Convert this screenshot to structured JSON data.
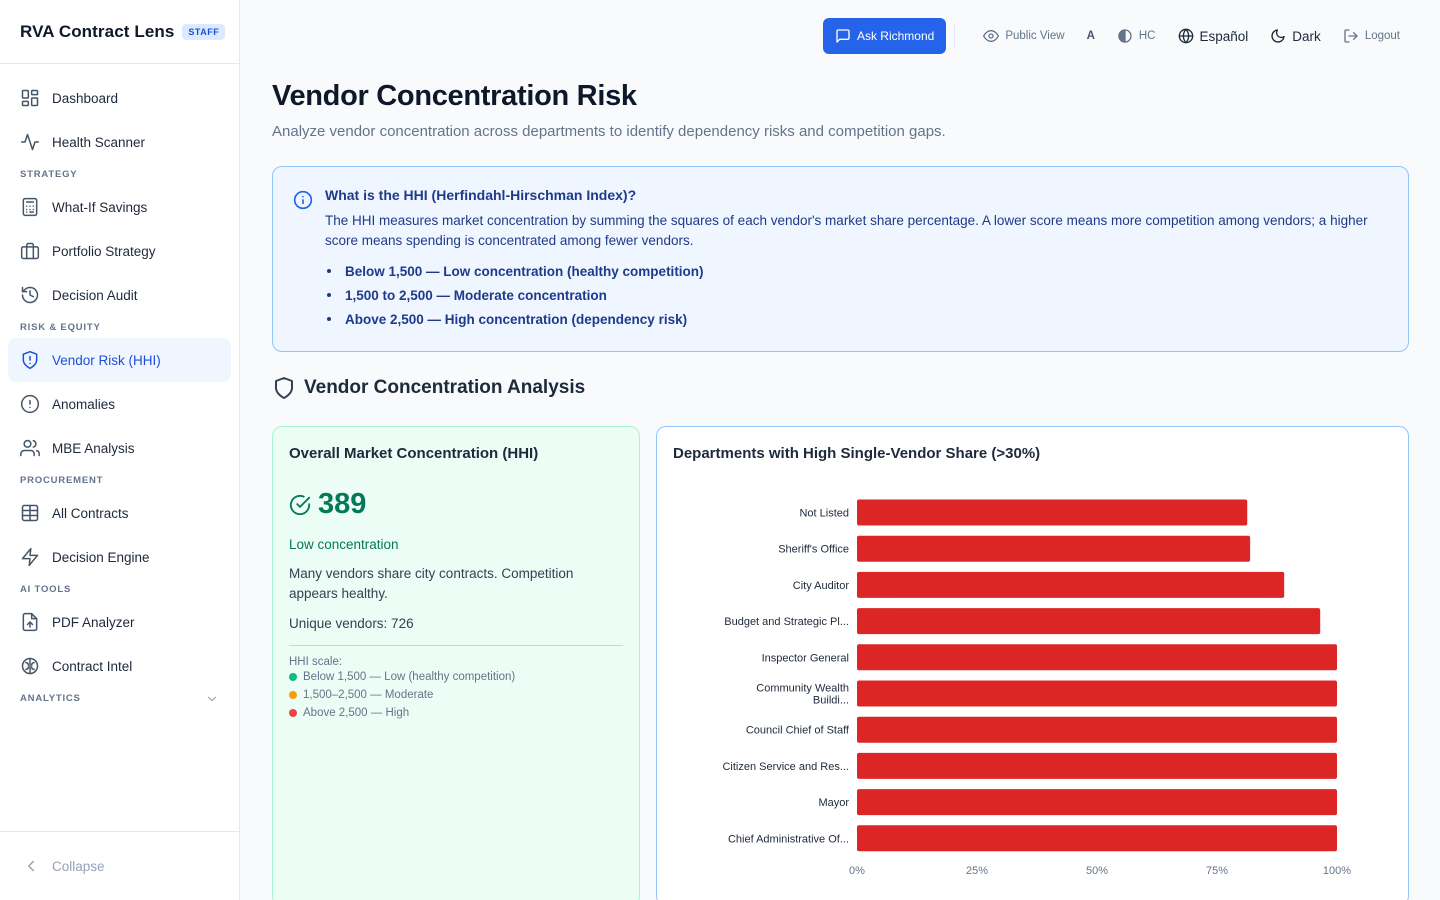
{
  "app": {
    "title": "RVA Contract Lens",
    "badge": "STAFF"
  },
  "sidebar": {
    "items": [
      {
        "type": "item",
        "label": "Dashboard",
        "icon": "dashboard-icon"
      },
      {
        "type": "item",
        "label": "Health Scanner",
        "icon": "activity-icon"
      },
      {
        "type": "section",
        "label": "STRATEGY"
      },
      {
        "type": "item",
        "label": "What-If Savings",
        "icon": "calculator-icon"
      },
      {
        "type": "item",
        "label": "Portfolio Strategy",
        "icon": "briefcase-icon"
      },
      {
        "type": "item",
        "label": "Decision Audit",
        "icon": "history-icon"
      },
      {
        "type": "section",
        "label": "RISK & EQUITY"
      },
      {
        "type": "item",
        "label": "Vendor Risk (HHI)",
        "icon": "shield-alert-icon",
        "active": true
      },
      {
        "type": "item",
        "label": "Anomalies",
        "icon": "alert-circle-icon"
      },
      {
        "type": "item",
        "label": "MBE Analysis",
        "icon": "users-icon"
      },
      {
        "type": "section",
        "label": "PROCUREMENT"
      },
      {
        "type": "item",
        "label": "All Contracts",
        "icon": "table-icon"
      },
      {
        "type": "item",
        "label": "Decision Engine",
        "icon": "zap-icon"
      },
      {
        "type": "section",
        "label": "AI TOOLS"
      },
      {
        "type": "item",
        "label": "PDF Analyzer",
        "icon": "file-upload-icon"
      },
      {
        "type": "item",
        "label": "Contract Intel",
        "icon": "brain-icon"
      },
      {
        "type": "section",
        "label": "ANALYTICS",
        "collapsible": true
      }
    ],
    "collapse_label": "Collapse"
  },
  "topbar": {
    "ask_label": "Ask Richmond",
    "public_view_label": "Public View",
    "font_size_label": "A",
    "contrast_label": "HC",
    "language_label": "Español",
    "theme_label": "Dark",
    "logout_label": "Logout"
  },
  "page": {
    "title": "Vendor Concentration Risk",
    "subtitle": "Analyze vendor concentration across departments to identify dependency risks and competition gaps."
  },
  "info": {
    "title": "What is the HHI (Herfindahl-Hirschman Index)?",
    "text": "The HHI measures market concentration by summing the squares of each vendor's market share percentage. A lower score means more competition among vendors; a higher score means spending is concentrated among fewer vendors.",
    "bullets": [
      "Below 1,500 — Low concentration (healthy competition)",
      "1,500 to 2,500 — Moderate concentration",
      "Above 2,500 — High concentration (dependency risk)"
    ]
  },
  "analysis": {
    "section_title": "Vendor Concentration Analysis",
    "hhi_card": {
      "title": "Overall Market Concentration (HHI)",
      "value": "389",
      "level": "Low concentration",
      "description": "Many vendors share city contracts. Competition appears healthy.",
      "unique_vendors": "Unique vendors: 726",
      "scale_title": "HHI scale:",
      "scale": [
        {
          "label": "Below 1,500 — Low (healthy competition)",
          "color": "#10b981"
        },
        {
          "label": "1,500–2,500 — Moderate",
          "color": "#f59e0b"
        },
        {
          "label": "Above 2,500 — High",
          "color": "#ef4444"
        }
      ]
    }
  },
  "chart_data": {
    "type": "bar",
    "orientation": "horizontal",
    "title": "Departments with High Single-Vendor Share (>30%)",
    "categories": [
      [
        "Not Listed"
      ],
      [
        "Sheriff's Office"
      ],
      [
        "City Auditor"
      ],
      [
        "Budget and Strategic Pl..."
      ],
      [
        "Inspector General"
      ],
      [
        "Community Wealth",
        "Buildi..."
      ],
      [
        "Council Chief of Staff"
      ],
      [
        "Citizen Service and Res..."
      ],
      [
        "Mayor"
      ],
      [
        "Chief Administrative Of..."
      ]
    ],
    "values": [
      81.3,
      81.9,
      89.0,
      96.5,
      100,
      100,
      100,
      100,
      100,
      100
    ],
    "xlim": [
      0,
      100
    ],
    "x_ticks": [
      "0%",
      "25%",
      "50%",
      "75%",
      "100%"
    ],
    "bar_color": "#dc2626",
    "grid": false
  }
}
